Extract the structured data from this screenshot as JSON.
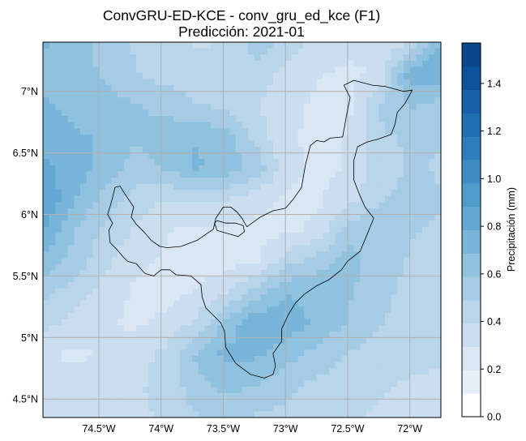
{
  "title_line1": "ConvGRU-ED-KCE - conv_gru_ed_kce (F1)",
  "title_line2": "Predicción: 2021-01",
  "map": {
    "lon_range": [
      -74.95,
      -71.75
    ],
    "lat_range": [
      4.35,
      7.4
    ],
    "gridlines": true,
    "x_ticks": [
      {
        "value": -74.5,
        "label": "74.5°W"
      },
      {
        "value": -74.0,
        "label": "74°W"
      },
      {
        "value": -73.5,
        "label": "73.5°W"
      },
      {
        "value": -73.0,
        "label": "73°W"
      },
      {
        "value": -72.5,
        "label": "72.5°W"
      },
      {
        "value": -72.0,
        "label": "72°W"
      }
    ],
    "y_ticks": [
      {
        "value": 7.0,
        "label": "7°N"
      },
      {
        "value": 6.5,
        "label": "6.5°N"
      },
      {
        "value": 6.0,
        "label": "6°N"
      },
      {
        "value": 5.5,
        "label": "5.5°N"
      },
      {
        "value": 5.0,
        "label": "5°N"
      },
      {
        "value": 4.5,
        "label": "4.5°N"
      }
    ],
    "boundary_outline": [
      [
        -74.41,
        5.77
      ],
      [
        -74.42,
        5.87
      ],
      [
        -74.39,
        5.93
      ],
      [
        -74.43,
        6.0
      ],
      [
        -74.4,
        6.1
      ],
      [
        -74.37,
        6.22
      ],
      [
        -74.33,
        6.23
      ],
      [
        -74.3,
        6.18
      ],
      [
        -74.22,
        6.06
      ],
      [
        -74.24,
        5.98
      ],
      [
        -74.2,
        5.92
      ],
      [
        -74.14,
        5.86
      ],
      [
        -74.08,
        5.79
      ],
      [
        -74.01,
        5.74
      ],
      [
        -73.95,
        5.73
      ],
      [
        -73.84,
        5.74
      ],
      [
        -73.71,
        5.79
      ],
      [
        -73.58,
        5.88
      ],
      [
        -73.56,
        5.97
      ],
      [
        -73.5,
        6.06
      ],
      [
        -73.44,
        6.06
      ],
      [
        -73.39,
        6.02
      ],
      [
        -73.35,
        5.97
      ],
      [
        -73.31,
        5.9
      ],
      [
        -73.2,
        5.98
      ],
      [
        -73.1,
        6.03
      ],
      [
        -73.0,
        6.05
      ],
      [
        -72.94,
        6.12
      ],
      [
        -72.87,
        6.22
      ],
      [
        -72.84,
        6.4
      ],
      [
        -72.8,
        6.56
      ],
      [
        -72.75,
        6.6
      ],
      [
        -72.69,
        6.59
      ],
      [
        -72.64,
        6.62
      ],
      [
        -72.54,
        6.63
      ],
      [
        -72.51,
        6.8
      ],
      [
        -72.48,
        6.95
      ],
      [
        -72.53,
        7.05
      ],
      [
        -72.45,
        7.09
      ],
      [
        -72.3,
        7.05
      ],
      [
        -72.2,
        7.04
      ],
      [
        -72.05,
        7.0
      ],
      [
        -71.98,
        7.01
      ],
      [
        -72.04,
        6.9
      ],
      [
        -72.1,
        6.83
      ],
      [
        -72.12,
        6.73
      ],
      [
        -72.15,
        6.65
      ],
      [
        -72.26,
        6.61
      ],
      [
        -72.34,
        6.59
      ],
      [
        -72.42,
        6.55
      ],
      [
        -72.45,
        6.44
      ],
      [
        -72.45,
        6.28
      ],
      [
        -72.4,
        6.15
      ],
      [
        -72.36,
        6.06
      ],
      [
        -72.29,
        5.97
      ],
      [
        -72.35,
        5.82
      ],
      [
        -72.4,
        5.7
      ],
      [
        -72.5,
        5.62
      ],
      [
        -72.55,
        5.55
      ],
      [
        -72.65,
        5.47
      ],
      [
        -72.75,
        5.42
      ],
      [
        -72.85,
        5.35
      ],
      [
        -72.92,
        5.28
      ],
      [
        -72.98,
        5.18
      ],
      [
        -73.03,
        5.07
      ],
      [
        -73.03,
        4.97
      ],
      [
        -73.1,
        4.87
      ],
      [
        -73.08,
        4.77
      ],
      [
        -73.1,
        4.7
      ],
      [
        -73.17,
        4.67
      ],
      [
        -73.28,
        4.7
      ],
      [
        -73.4,
        4.79
      ],
      [
        -73.48,
        4.92
      ],
      [
        -73.49,
        5.05
      ],
      [
        -73.52,
        5.12
      ],
      [
        -73.64,
        5.24
      ],
      [
        -73.67,
        5.33
      ],
      [
        -73.68,
        5.43
      ],
      [
        -73.76,
        5.5
      ],
      [
        -73.88,
        5.51
      ],
      [
        -73.93,
        5.55
      ],
      [
        -74.0,
        5.55
      ],
      [
        -74.06,
        5.5
      ],
      [
        -74.13,
        5.52
      ],
      [
        -74.2,
        5.6
      ],
      [
        -74.27,
        5.62
      ],
      [
        -74.3,
        5.65
      ],
      [
        -74.36,
        5.72
      ],
      [
        -74.41,
        5.77
      ]
    ],
    "boundary_outline_2": [
      [
        -73.48,
        5.93
      ],
      [
        -73.55,
        5.95
      ],
      [
        -73.57,
        5.93
      ],
      [
        -73.55,
        5.87
      ],
      [
        -73.45,
        5.84
      ],
      [
        -73.38,
        5.82
      ],
      [
        -73.33,
        5.86
      ],
      [
        -73.34,
        5.91
      ],
      [
        -73.4,
        5.93
      ],
      [
        -73.48,
        5.93
      ]
    ]
  },
  "colorbar": {
    "label": "Precipitación (mm)",
    "min": 0.0,
    "max": 1.57,
    "ticks": [
      {
        "value": 0.0,
        "label": "0.0"
      },
      {
        "value": 0.2,
        "label": "0.2"
      },
      {
        "value": 0.4,
        "label": "0.4"
      },
      {
        "value": 0.6,
        "label": "0.6"
      },
      {
        "value": 0.8,
        "label": "0.8"
      },
      {
        "value": 1.0,
        "label": "1.0"
      },
      {
        "value": 1.2,
        "label": "1.2"
      },
      {
        "value": 1.4,
        "label": "1.4"
      }
    ],
    "colors": [
      "#ffffff",
      "#e6eff8",
      "#d9e7f5",
      "#cadef0",
      "#b8d5ea",
      "#a5cce4",
      "#8fc2de",
      "#79b5d9",
      "#62a8d2",
      "#4f9bcb",
      "#3d8dc4",
      "#2d7dbb",
      "#1f6eb0",
      "#1560a6",
      "#0b529a",
      "#08458a"
    ]
  },
  "precipitation_field": {
    "lon_step": 0.25,
    "lat_step": 0.25,
    "rows_north_to_south": [
      [
        0.7,
        0.65,
        0.55,
        0.48,
        0.42,
        0.38,
        0.4,
        0.55,
        0.45,
        0.35,
        0.32,
        0.3,
        0.4,
        0.68
      ],
      [
        0.66,
        0.62,
        0.58,
        0.5,
        0.45,
        0.42,
        0.42,
        0.45,
        0.35,
        0.3,
        0.28,
        0.3,
        0.75,
        0.8
      ],
      [
        0.7,
        0.66,
        0.62,
        0.6,
        0.55,
        0.5,
        0.45,
        0.4,
        0.32,
        0.28,
        0.27,
        0.5,
        0.6,
        0.55
      ],
      [
        0.74,
        0.7,
        0.68,
        0.6,
        0.64,
        0.68,
        0.62,
        0.45,
        0.3,
        0.28,
        0.3,
        0.48,
        0.5,
        0.5
      ],
      [
        0.8,
        0.75,
        0.66,
        0.55,
        0.6,
        0.7,
        0.66,
        0.55,
        0.32,
        0.28,
        0.3,
        0.45,
        0.5,
        0.48
      ],
      [
        0.88,
        0.7,
        0.55,
        0.45,
        0.4,
        0.42,
        0.4,
        0.33,
        0.28,
        0.28,
        0.35,
        0.48,
        0.52,
        0.5
      ],
      [
        0.8,
        0.6,
        0.48,
        0.38,
        0.3,
        0.28,
        0.27,
        0.27,
        0.27,
        0.32,
        0.55,
        0.58,
        0.5,
        0.48
      ],
      [
        0.65,
        0.55,
        0.42,
        0.32,
        0.28,
        0.25,
        0.25,
        0.28,
        0.45,
        0.55,
        0.62,
        0.55,
        0.48,
        0.45
      ],
      [
        0.52,
        0.45,
        0.35,
        0.28,
        0.26,
        0.3,
        0.38,
        0.55,
        0.68,
        0.66,
        0.6,
        0.52,
        0.46,
        0.45
      ],
      [
        0.42,
        0.36,
        0.3,
        0.28,
        0.32,
        0.42,
        0.62,
        0.78,
        0.75,
        0.66,
        0.58,
        0.5,
        0.45,
        0.42
      ],
      [
        0.3,
        0.28,
        0.3,
        0.35,
        0.42,
        0.6,
        0.72,
        0.7,
        0.62,
        0.55,
        0.48,
        0.44,
        0.42,
        0.4
      ],
      [
        0.35,
        0.32,
        0.35,
        0.38,
        0.42,
        0.55,
        0.62,
        0.58,
        0.52,
        0.46,
        0.43,
        0.4,
        0.38,
        0.38
      ],
      [
        0.38,
        0.36,
        0.36,
        0.38,
        0.4,
        0.48,
        0.5,
        0.48,
        0.45,
        0.42,
        0.4,
        0.38,
        0.38,
        0.36
      ]
    ]
  }
}
